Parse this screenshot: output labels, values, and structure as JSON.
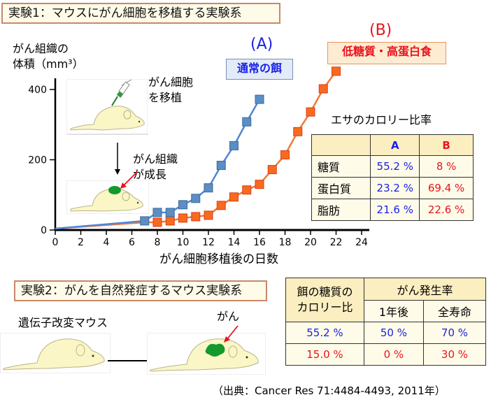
{
  "experiment1": {
    "title": "実験1：マウスにがん細胞を移植する実験系",
    "annot_inject_line1": "がん細胞",
    "annot_inject_line2": "を移植",
    "annot_growth_line1": "がん組織",
    "annot_growth_line2": "が成長",
    "diet_a": {
      "tag": "(A)",
      "label": "通常の餌",
      "color": "#1a22e6",
      "line_color": "#4f86d8",
      "marker_color": "#5b8ec4"
    },
    "diet_b": {
      "tag": "(B)",
      "label": "低糖質・高蛋白食",
      "color": "#e8141e",
      "line_color": "#f07a34",
      "marker_color": "#f86a20"
    },
    "calorie_table": {
      "title": "エサのカロリー比率",
      "headers": [
        "",
        "A",
        "B"
      ],
      "rows": [
        {
          "label": "糖質",
          "a": "55.2 %",
          "b": "8 %"
        },
        {
          "label": "蛋白質",
          "a": "23.2 %",
          "b": "69.4 %"
        },
        {
          "label": "脂肪",
          "a": "21.6 %",
          "b": "22.6 %"
        }
      ]
    }
  },
  "chart_data": {
    "type": "line",
    "title": "",
    "xlabel": "がん細胞移植後の日数",
    "ylabel": "がん組織の体積（mm³）",
    "ylabel_line1": "がん組織の",
    "ylabel_line2": "体積（mm³）",
    "xlim": [
      0,
      24
    ],
    "ylim": [
      0,
      420
    ],
    "xticks": [
      "0",
      "2",
      "4",
      "6",
      "8",
      "10",
      "12",
      "14",
      "16",
      "18",
      "20",
      "22",
      "24"
    ],
    "yticks": [
      "0",
      "200",
      "400"
    ],
    "grid": false,
    "series": [
      {
        "name": "(A) 通常の餌",
        "x": [
          0,
          7,
          8,
          9,
          10,
          11,
          12,
          13,
          14,
          15,
          16
        ],
        "values": [
          4,
          26,
          50,
          50,
          72,
          90,
          120,
          184,
          240,
          308,
          372
        ],
        "markers_from_index": 1
      },
      {
        "name": "(B) 低糖質・高蛋白食",
        "x": [
          0,
          7,
          8,
          9,
          10,
          11,
          12,
          13,
          14,
          15,
          16,
          17,
          18,
          19,
          20,
          21,
          22
        ],
        "values": [
          4,
          22,
          22,
          26,
          34,
          38,
          42,
          70,
          94,
          114,
          130,
          172,
          214,
          280,
          336,
          402,
          452
        ],
        "markers_from_index": 2
      }
    ]
  },
  "experiment2": {
    "title": "実験2：がんを自然発症するマウス実験系",
    "mouse_label": "遺伝子改変マウス",
    "cancer_label": "がん",
    "table": {
      "header_col1_line1": "餌の糖質の",
      "header_col1_line2": "カロリー比",
      "header_group": "がん発生率",
      "header_sub1": "1年後",
      "header_sub2": "全寿命",
      "rows": [
        {
          "ratio": "55.2 %",
          "one_year": "50 %",
          "lifetime": "70 %",
          "color": "blue"
        },
        {
          "ratio": "15.0 %",
          "one_year": "0 %",
          "lifetime": "30 %",
          "color": "red"
        }
      ]
    }
  },
  "source": "（出典：Cancer Res 71:4484-4493, 2011年）"
}
